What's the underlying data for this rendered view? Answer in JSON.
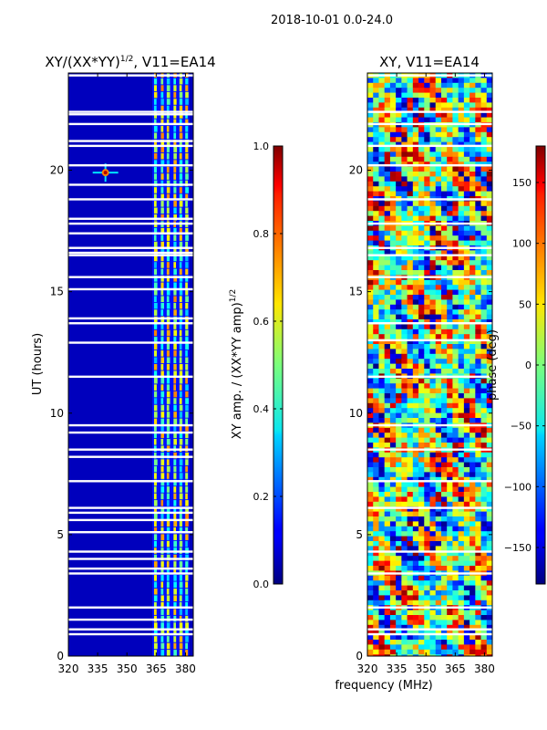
{
  "suptitle": "2018-10-01 0.0-24.0",
  "chart_data": [
    {
      "type": "heatmap",
      "title_main": "XY/(XX*YY)",
      "title_exp": "1/2",
      "title_tail": ", V11=EA14",
      "xlabel": "",
      "ylabel": "UT (hours)",
      "xlim": [
        320,
        384
      ],
      "ylim": [
        0,
        24
      ],
      "xticks": [
        "320",
        "335",
        "350",
        "365",
        "380"
      ],
      "xtick_values": [
        320,
        335,
        350,
        365,
        380
      ],
      "yticks": [
        "0",
        "5",
        "10",
        "15",
        "20"
      ],
      "ytick_values": [
        0,
        5,
        10,
        15,
        20
      ],
      "colormap": "jet",
      "colorbar": {
        "label_main": "XY amp. / (XX*YY amp)",
        "label_exp": "1/2",
        "range": [
          0,
          1
        ],
        "ticks": [
          "0.0",
          "0.2",
          "0.4",
          "0.6",
          "0.8",
          "1.0"
        ],
        "tick_values": [
          0.0,
          0.2,
          0.4,
          0.6,
          0.8,
          1.0
        ]
      },
      "features": {
        "bright_band_mhz": [
          363,
          382
        ],
        "hot_spot": {
          "mhz": 339,
          "ut": 19.9,
          "value": 0.95
        },
        "flagged_ut": [
          0.9,
          1.1,
          1.5,
          2.0,
          3.4,
          3.6,
          4.0,
          4.3,
          5.1,
          5.6,
          5.9,
          6.1,
          7.2,
          8.2,
          8.5,
          9.2,
          9.5,
          11.5,
          12.9,
          13.7,
          13.9,
          15.1,
          15.6,
          16.5,
          16.6,
          16.8,
          17.4,
          17.8,
          18.0,
          18.8,
          19.4,
          20.2,
          21.0,
          21.2,
          21.9,
          22.3,
          22.4,
          23.9
        ]
      }
    },
    {
      "type": "heatmap",
      "title": "XY, V11=EA14",
      "xlabel": "frequency (MHz)",
      "ylabel": "",
      "xlim": [
        320,
        384
      ],
      "ylim": [
        0,
        24
      ],
      "xticks": [
        "320",
        "335",
        "350",
        "365",
        "380"
      ],
      "xtick_values": [
        320,
        335,
        350,
        365,
        380
      ],
      "yticks": [
        "0",
        "5",
        "10",
        "15",
        "20"
      ],
      "ytick_values": [
        0,
        5,
        10,
        15,
        20
      ],
      "colormap": "jet",
      "colorbar": {
        "label": "phase (deg)",
        "range": [
          -180,
          180
        ],
        "ticks": [
          "−150",
          "−100",
          "−50",
          "0",
          "50",
          "100",
          "150"
        ],
        "tick_values": [
          -150,
          -100,
          -50,
          0,
          50,
          100,
          150
        ]
      },
      "features": {
        "flagged_ut": [
          0.9,
          1.1,
          2.0,
          3.4,
          4.3,
          6.1,
          7.2,
          8.5,
          9.5,
          11.5,
          13.0,
          13.7,
          15.6,
          16.5,
          16.8,
          17.8,
          18.8,
          20.2,
          21.0,
          21.9,
          22.4,
          23.9
        ]
      }
    }
  ]
}
